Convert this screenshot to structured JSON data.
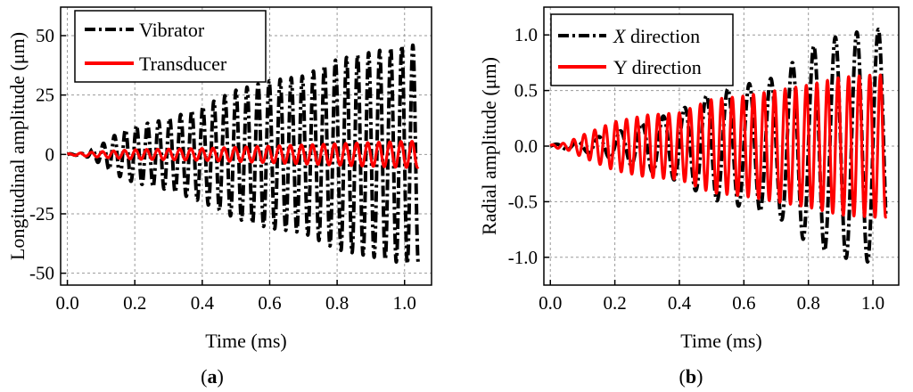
{
  "chart_data": [
    {
      "type": "line",
      "panel": "a",
      "panel_label": "a",
      "xlabel": "Time (ms)",
      "ylabel": "Longitudinal amplitude (μm)",
      "xlim": [
        -0.02,
        1.08
      ],
      "ylim": [
        -55,
        62
      ],
      "xticks": [
        0.0,
        0.2,
        0.4,
        0.6,
        0.8,
        1.0
      ],
      "xtick_labels": [
        "0.0",
        "0.2",
        "0.4",
        "0.6",
        "0.8",
        "1.0"
      ],
      "yticks": [
        -50,
        -25,
        0,
        25,
        50
      ],
      "ytick_labels": [
        "-50",
        "-25",
        "0",
        "25",
        "50"
      ],
      "grid": true,
      "legend_position": "top-left",
      "series": [
        {
          "name": "Vibrator",
          "style": "dash-dot",
          "color": "#000000",
          "frequency_khz": 30.5,
          "phase": 0,
          "envelope_points": [
            [
              0.0,
              0.2
            ],
            [
              0.05,
              0.5
            ],
            [
              0.1,
              4
            ],
            [
              0.15,
              9
            ],
            [
              0.2,
              12
            ],
            [
              0.3,
              15
            ],
            [
              0.4,
              20
            ],
            [
              0.5,
              27
            ],
            [
              0.6,
              31
            ],
            [
              0.7,
              33
            ],
            [
              0.8,
              40
            ],
            [
              0.9,
              43
            ],
            [
              1.0,
              46
            ],
            [
              1.04,
              46
            ]
          ]
        },
        {
          "name": "Transducer",
          "style": "solid",
          "color": "#ff0000",
          "frequency_khz": 30.5,
          "phase": 0.5,
          "envelope_points": [
            [
              0.0,
              0.2
            ],
            [
              0.1,
              1.2
            ],
            [
              0.2,
              2
            ],
            [
              0.4,
              2.5
            ],
            [
              0.6,
              3.5
            ],
            [
              0.8,
              4.5
            ],
            [
              1.0,
              5.5
            ],
            [
              1.04,
              5.5
            ]
          ]
        }
      ]
    },
    {
      "type": "line",
      "panel": "b",
      "panel_label": "b",
      "xlabel": "Time (ms)",
      "ylabel": "Radial amplitude (μm)",
      "xlim": [
        -0.02,
        1.08
      ],
      "ylim": [
        -1.25,
        1.25
      ],
      "xticks": [
        0.0,
        0.2,
        0.4,
        0.6,
        0.8,
        1.0
      ],
      "xtick_labels": [
        "0.0",
        "0.2",
        "0.4",
        "0.6",
        "0.8",
        "1.0"
      ],
      "yticks": [
        -1.0,
        -0.5,
        0.0,
        0.5,
        1.0
      ],
      "ytick_labels": [
        "-1.0",
        "-0.5",
        "0.0",
        "0.5",
        "1.0"
      ],
      "grid": true,
      "legend_position": "top-left",
      "series": [
        {
          "name": "X direction",
          "legend_italic": "X",
          "legend_rest": " direction",
          "style": "dash-dot",
          "color": "#000000",
          "frequency_khz": 15,
          "phase": 0,
          "envelope_points": [
            [
              0.0,
              0.01
            ],
            [
              0.1,
              0.05
            ],
            [
              0.2,
              0.12
            ],
            [
              0.3,
              0.22
            ],
            [
              0.4,
              0.32
            ],
            [
              0.5,
              0.48
            ],
            [
              0.6,
              0.55
            ],
            [
              0.7,
              0.62
            ],
            [
              0.8,
              0.88
            ],
            [
              0.9,
              1.0
            ],
            [
              1.0,
              1.05
            ],
            [
              1.04,
              1.05
            ]
          ]
        },
        {
          "name": "Y direction",
          "style": "solid",
          "color": "#ff0000",
          "frequency_khz": 30.5,
          "phase": 0.3,
          "envelope_points": [
            [
              0.0,
              0.01
            ],
            [
              0.05,
              0.03
            ],
            [
              0.1,
              0.1
            ],
            [
              0.2,
              0.22
            ],
            [
              0.3,
              0.28
            ],
            [
              0.4,
              0.3
            ],
            [
              0.5,
              0.42
            ],
            [
              0.6,
              0.45
            ],
            [
              0.7,
              0.5
            ],
            [
              0.8,
              0.55
            ],
            [
              0.9,
              0.62
            ],
            [
              1.0,
              0.64
            ],
            [
              1.04,
              0.64
            ]
          ]
        }
      ]
    }
  ]
}
